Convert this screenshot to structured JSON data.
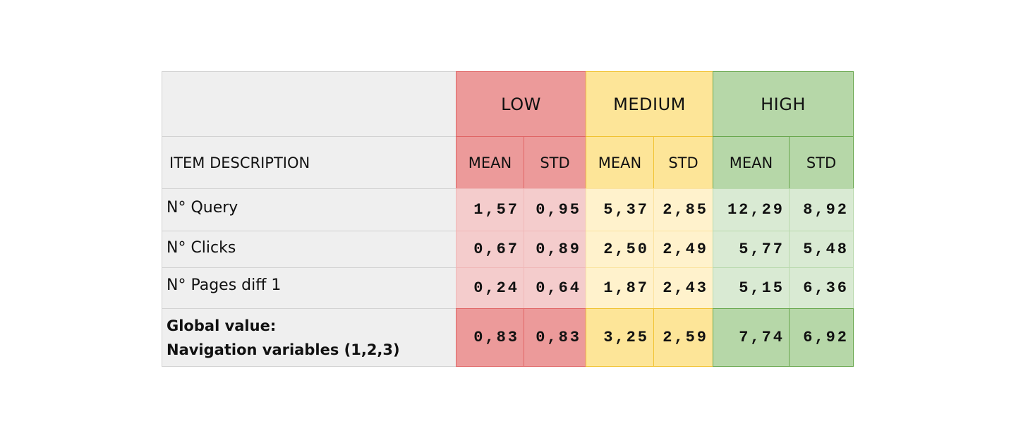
{
  "table": {
    "header_description": "ITEM DESCRIPTION",
    "groups": [
      {
        "key": "low",
        "label": "LOW",
        "header_color": "#ec9a9a",
        "border_color": "#e06666",
        "light_color": "#f4cccc"
      },
      {
        "key": "medium",
        "label": "MEDIUM",
        "header_color": "#fde598",
        "border_color": "#f1c232",
        "light_color": "#fff2cc"
      },
      {
        "key": "high",
        "label": "HIGH",
        "header_color": "#b6d7a8",
        "border_color": "#6aa84f",
        "light_color": "#d9ead3"
      }
    ],
    "subheaders": [
      "MEAN",
      "STD",
      "MEAN",
      "STD",
      "MEAN",
      "STD"
    ],
    "rows": [
      {
        "label": "N° Query",
        "values": [
          "1,57",
          "0,95",
          "5,37",
          "2,85",
          "12,29",
          "8,92"
        ]
      },
      {
        "label": "N° Clicks",
        "values": [
          "0,67",
          "0,89",
          "2,50",
          "2,49",
          "5,77",
          "5,48"
        ]
      },
      {
        "label": "N° Pages diff 1",
        "values": [
          "0,24",
          "0,64",
          "1,87",
          "2,43",
          "5,15",
          "6,36"
        ]
      }
    ],
    "summary": {
      "label_line1": "Global value:",
      "label_line2": "Navigation variables (1,2,3)",
      "values": [
        "0,83",
        "0,83",
        "3,25",
        "2,59",
        "7,74",
        "6,92"
      ]
    }
  }
}
